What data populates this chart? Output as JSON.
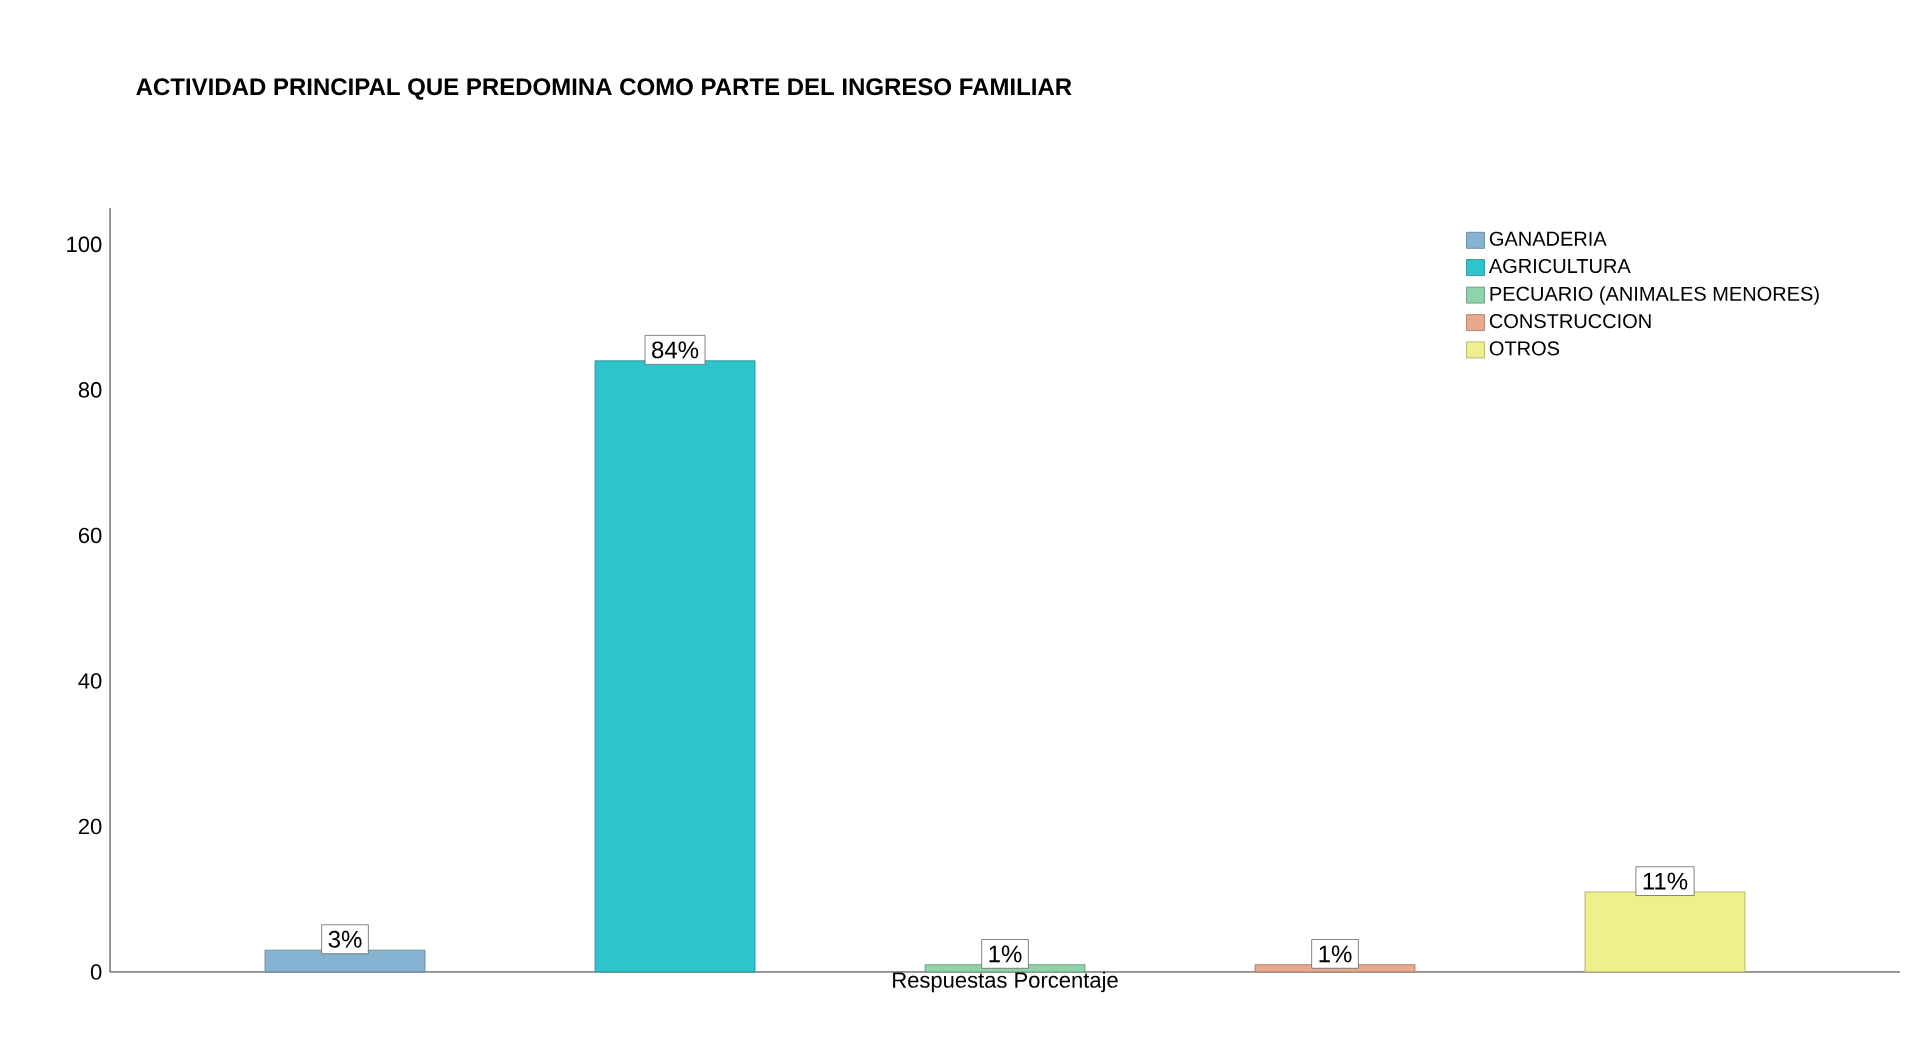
{
  "chart_data": {
    "type": "bar",
    "title": "ACTIVIDAD PRINCIPAL QUE PREDOMINA COMO PARTE DEL INGRESO FAMILIAR",
    "xlabel": "Respuestas Porcentaje",
    "categories": [
      null
    ],
    "series": [
      {
        "name": "GANADERIA",
        "color": "#86b3d1",
        "values": [
          3
        ],
        "value_labels": [
          "3%"
        ]
      },
      {
        "name": "AGRICULTURA",
        "color": "#2ec4cc",
        "values": [
          84
        ],
        "value_labels": [
          "84%"
        ]
      },
      {
        "name": "PECUARIO (ANIMALES MENORES)",
        "color": "#8fd3aa",
        "values": [
          1
        ],
        "value_labels": [
          "1%"
        ]
      },
      {
        "name": "CONSTRUCCION",
        "color": "#e8a98c",
        "values": [
          1
        ],
        "value_labels": [
          "1%"
        ]
      },
      {
        "name": "OTROS",
        "color": "#f0ef8e",
        "values": [
          11
        ],
        "value_labels": [
          "11%"
        ]
      }
    ],
    "ylim": [
      0,
      105
    ],
    "yticks": [
      0,
      20,
      40,
      60,
      80,
      100
    ],
    "grid": false,
    "legend": "top right"
  }
}
